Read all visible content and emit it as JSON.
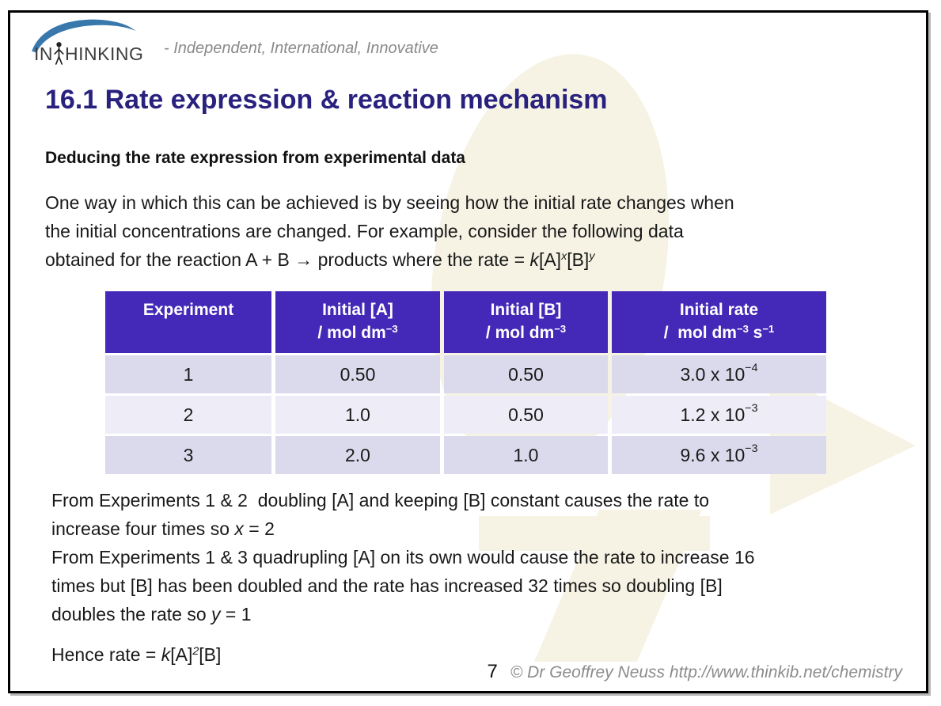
{
  "logo": {
    "word_start": "IN",
    "word_end": "HINKING",
    "tagline": "- Independent, International, Innovative"
  },
  "title": "16.1 Rate expression & reaction mechanism",
  "subtitle": "Deducing the rate expression from experimental data",
  "intro_lines": [
    [
      "One way in which this can be achieved is by seeing how the initial rate changes when"
    ],
    [
      "the initial concentrations are changed. For example, consider the following data"
    ],
    [
      "obtained for the reaction A + B → products where the rate = ",
      {
        "i": "k"
      },
      "[A]",
      {
        "isup": "x"
      },
      "[B]",
      {
        "isup": "y"
      }
    ]
  ],
  "table": {
    "headers": [
      {
        "line1": "Experiment",
        "line2": []
      },
      {
        "line1": "Initial [A]",
        "line2": [
          "/ mol dm",
          {
            "sup": "−3"
          }
        ]
      },
      {
        "line1": "Initial [B]",
        "line2": [
          "/ mol dm",
          {
            "sup": "−3"
          }
        ]
      },
      {
        "line1": "Initial rate",
        "line2": [
          "/  mol dm",
          {
            "sup": "−3"
          },
          " s",
          {
            "sup": "−1"
          }
        ]
      }
    ],
    "rows": [
      [
        [
          "1"
        ],
        [
          "0.50"
        ],
        [
          "0.50"
        ],
        [
          "3.0 x 10",
          {
            "sup": "−4"
          }
        ]
      ],
      [
        [
          "2"
        ],
        [
          "1.0"
        ],
        [
          "0.50"
        ],
        [
          "1.2 x 10",
          {
            "sup": "−3"
          }
        ]
      ],
      [
        [
          "3"
        ],
        [
          "2.0"
        ],
        [
          "1.0"
        ],
        [
          "9.6 x 10",
          {
            "sup": "−3"
          }
        ]
      ]
    ]
  },
  "deduction_lines": [
    [
      "From Experiments 1 & 2  doubling [A] and keeping [B] constant causes the rate to"
    ],
    [
      "increase four times so ",
      {
        "i": "x"
      },
      " = 2"
    ],
    [
      "From Experiments 1 & 3 quadrupling [A] on its own would cause the rate to increase 16"
    ],
    [
      "times but [B] has been doubled and the rate has increased 32 times so doubling [B]"
    ],
    [
      "doubles the rate so ",
      {
        "i": "y"
      },
      " = 1"
    ]
  ],
  "conclusion_parts": [
    "Hence rate = ",
    {
      "i": "k"
    },
    "[A]",
    {
      "isup": "2"
    },
    "[B]"
  ],
  "footer": {
    "page_number": "7",
    "copyright": "© Dr Geoffrey Neuss http://www.thinkib.net/chemistry"
  },
  "colors": {
    "title_text": "#29217e",
    "table_header_bg": "#4429b8",
    "table_row_odd": "#dbd9ec",
    "table_row_even": "#eeecf7",
    "watermark": "#f6f3e4",
    "footer_text": "#8c8c8c",
    "logo_swoosh": "#3878ad"
  }
}
